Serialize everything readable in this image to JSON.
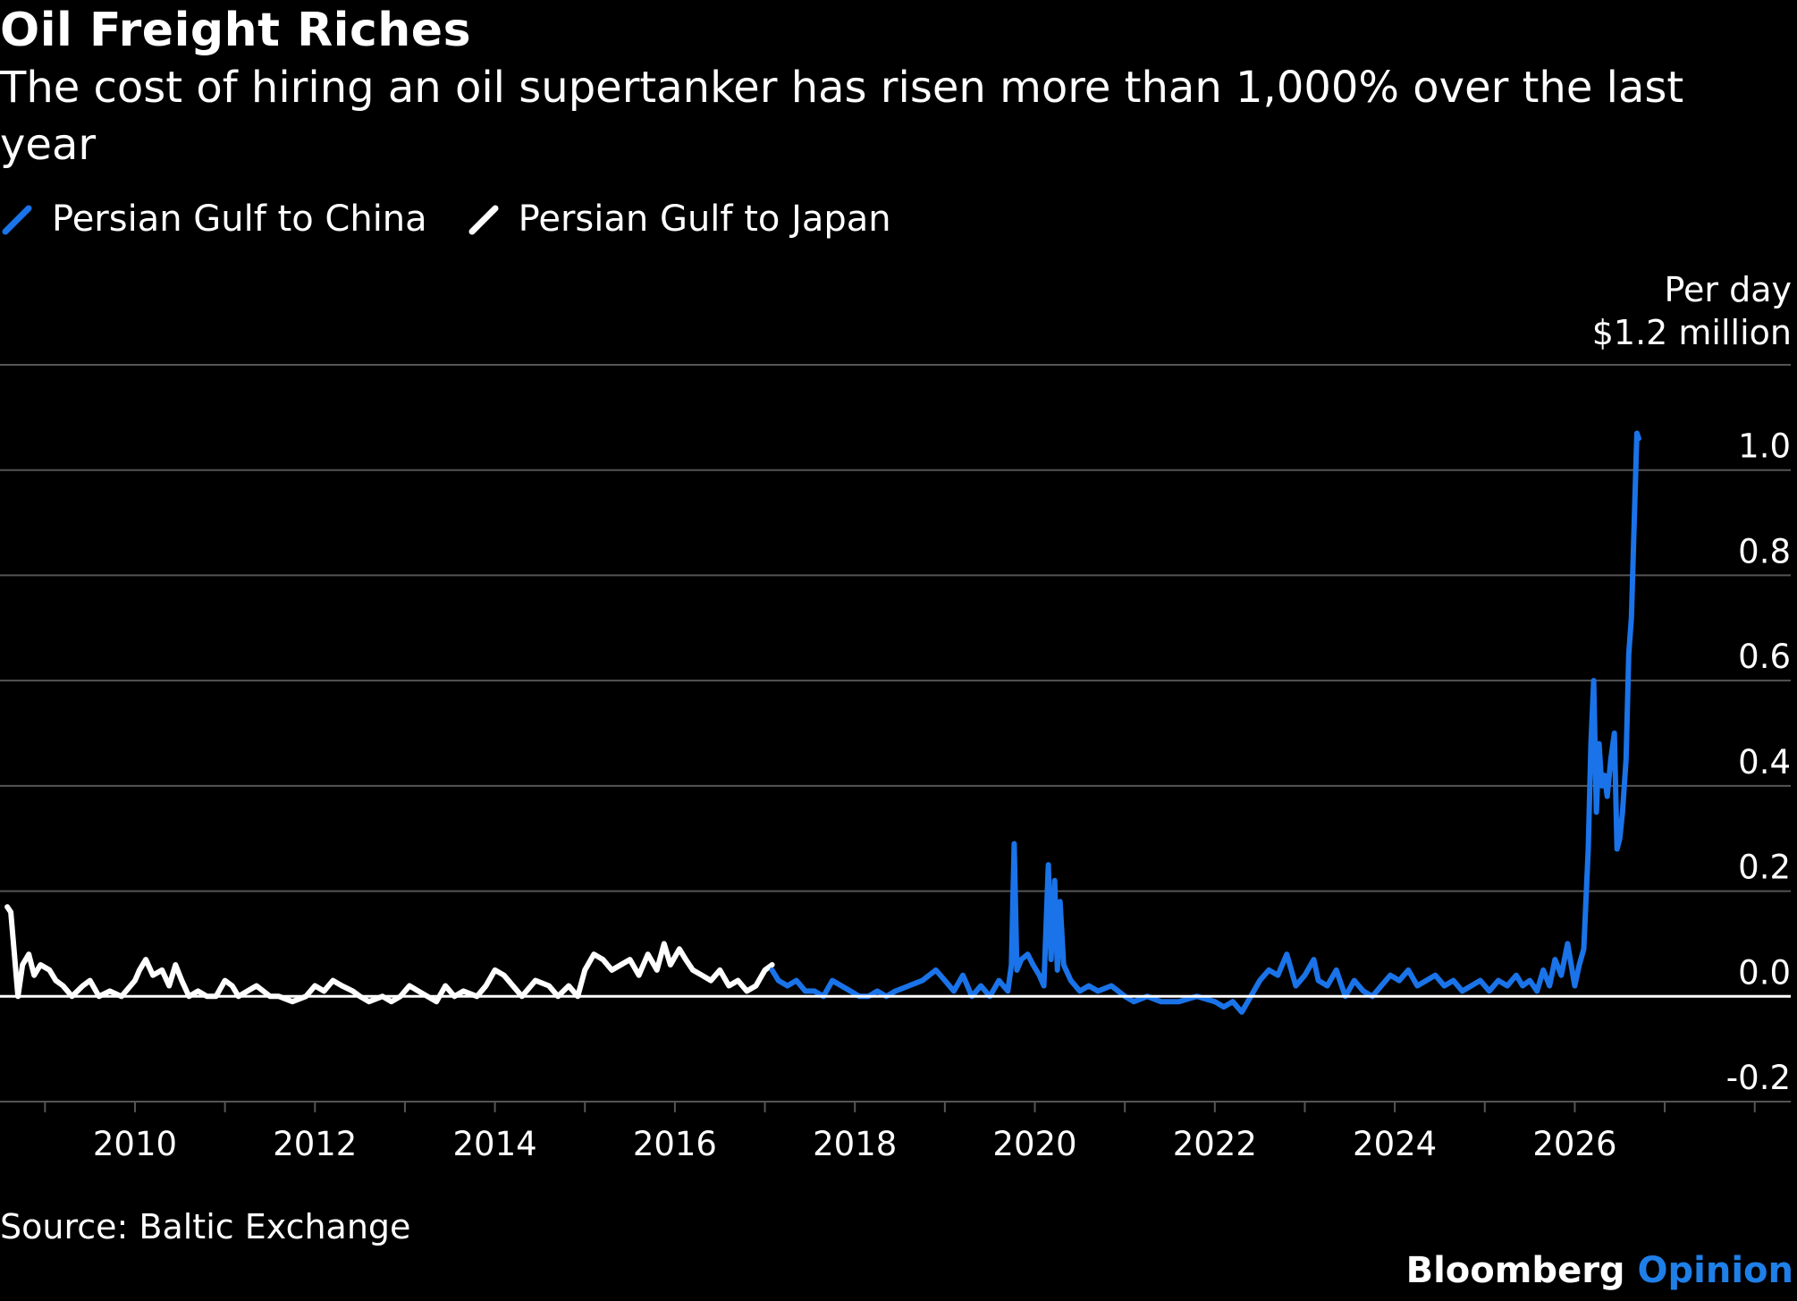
{
  "title": "Oil Freight Riches",
  "subtitle": "The cost of hiring an oil supertanker has risen more than 1,000% over the last year",
  "unit_label_line1": "Per day",
  "unit_label_line2": "$1.2 million",
  "source": "Source: Baltic Exchange",
  "brand": {
    "name": "Bloomberg",
    "accent": "Opinion"
  },
  "colors": {
    "china": "#1a73e8",
    "japan": "#ffffff",
    "grid": "#555555",
    "zero_line": "#ffffff",
    "background": "#000000"
  },
  "legend": [
    {
      "name": "Persian Gulf to China",
      "color": "#1a73e8",
      "icon": "slash-line-icon"
    },
    {
      "name": "Persian Gulf to Japan",
      "color": "#ffffff",
      "icon": "slash-line-icon"
    }
  ],
  "chart_data": {
    "type": "line",
    "xlim": [
      2008.5,
      2028.4
    ],
    "ylim": [
      -0.2,
      1.2
    ],
    "x_ticks": [
      "2010",
      "2012",
      "2014",
      "2016",
      "2018",
      "2020",
      "2022",
      "2024",
      "2026"
    ],
    "y_ticks": [
      "1.0",
      "0.8",
      "0.6",
      "0.4",
      "0.2",
      "0.0",
      "-0.2"
    ],
    "grid": true,
    "legend_position": "top-left",
    "series": [
      {
        "name": "Persian Gulf to Japan",
        "color": "#ffffff",
        "x": [
          2008.58,
          2008.62,
          2008.7,
          2008.75,
          2008.82,
          2008.88,
          2008.95,
          2009.05,
          2009.12,
          2009.2,
          2009.3,
          2009.42,
          2009.5,
          2009.6,
          2009.72,
          2009.85,
          2010.0,
          2010.05,
          2010.12,
          2010.2,
          2010.3,
          2010.38,
          2010.45,
          2010.52,
          2010.6,
          2010.7,
          2010.8,
          2010.9,
          2011.0,
          2011.08,
          2011.15,
          2011.25,
          2011.35,
          2011.5,
          2011.6,
          2011.75,
          2011.9,
          2012.0,
          2012.1,
          2012.2,
          2012.3,
          2012.42,
          2012.5,
          2012.6,
          2012.75,
          2012.85,
          2012.95,
          2013.05,
          2013.15,
          2013.25,
          2013.35,
          2013.45,
          2013.55,
          2013.65,
          2013.8,
          2013.9,
          2014.0,
          2014.1,
          2014.2,
          2014.3,
          2014.45,
          2014.6,
          2014.7,
          2014.82,
          2014.92,
          2015.0,
          2015.1,
          2015.2,
          2015.3,
          2015.4,
          2015.5,
          2015.6,
          2015.7,
          2015.8,
          2015.88,
          2015.95,
          2016.05,
          2016.12,
          2016.2,
          2016.3,
          2016.4,
          2016.5,
          2016.6,
          2016.7,
          2016.8,
          2016.9,
          2017.0,
          2017.08
        ],
        "y": [
          0.17,
          0.16,
          0.0,
          0.06,
          0.08,
          0.04,
          0.06,
          0.05,
          0.03,
          0.02,
          0.0,
          0.02,
          0.03,
          0.0,
          0.01,
          0.0,
          0.03,
          0.05,
          0.07,
          0.04,
          0.05,
          0.02,
          0.06,
          0.03,
          0.0,
          0.01,
          0.0,
          0.0,
          0.03,
          0.02,
          0.0,
          0.01,
          0.02,
          0.0,
          0.0,
          -0.01,
          0.0,
          0.02,
          0.01,
          0.03,
          0.02,
          0.01,
          0.0,
          -0.01,
          0.0,
          -0.01,
          0.0,
          0.02,
          0.01,
          0.0,
          -0.01,
          0.02,
          0.0,
          0.01,
          0.0,
          0.02,
          0.05,
          0.04,
          0.02,
          0.0,
          0.03,
          0.02,
          0.0,
          0.02,
          0.0,
          0.05,
          0.08,
          0.07,
          0.05,
          0.06,
          0.07,
          0.04,
          0.08,
          0.05,
          0.1,
          0.06,
          0.09,
          0.07,
          0.05,
          0.04,
          0.03,
          0.05,
          0.02,
          0.03,
          0.01,
          0.02,
          0.05,
          0.06
        ]
      },
      {
        "name": "Persian Gulf to China",
        "color": "#1a73e8",
        "x": [
          2017.08,
          2017.15,
          2017.25,
          2017.35,
          2017.45,
          2017.55,
          2017.65,
          2017.75,
          2017.85,
          2017.95,
          2018.05,
          2018.15,
          2018.25,
          2018.35,
          2018.45,
          2018.6,
          2018.75,
          2018.9,
          2019.0,
          2019.1,
          2019.2,
          2019.3,
          2019.4,
          2019.5,
          2019.6,
          2019.7,
          2019.74,
          2019.77,
          2019.8,
          2019.85,
          2019.92,
          2019.98,
          2020.05,
          2020.1,
          2020.15,
          2020.18,
          2020.22,
          2020.25,
          2020.28,
          2020.32,
          2020.4,
          2020.5,
          2020.6,
          2020.7,
          2020.85,
          2021.0,
          2021.1,
          2021.25,
          2021.4,
          2021.6,
          2021.8,
          2022.0,
          2022.1,
          2022.2,
          2022.3,
          2022.4,
          2022.5,
          2022.6,
          2022.7,
          2022.8,
          2022.9,
          2023.0,
          2023.1,
          2023.15,
          2023.25,
          2023.35,
          2023.45,
          2023.55,
          2023.65,
          2023.75,
          2023.85,
          2023.95,
          2024.05,
          2024.15,
          2024.25,
          2024.35,
          2024.45,
          2024.55,
          2024.65,
          2024.75,
          2024.85,
          2024.95,
          2025.05,
          2025.15,
          2025.25,
          2025.35,
          2025.42,
          2025.5,
          2025.58,
          2025.65,
          2025.72,
          2025.78,
          2025.85,
          2025.92,
          2026.0,
          2026.05,
          2026.1,
          2026.15,
          2026.18,
          2026.21,
          2026.24,
          2026.27,
          2026.3,
          2026.33,
          2026.36,
          2026.4,
          2026.44,
          2026.47,
          2026.5,
          2026.53,
          2026.57,
          2026.6,
          2026.63,
          2026.66,
          2026.69,
          2026.71
        ],
        "y": [
          0.05,
          0.03,
          0.02,
          0.03,
          0.01,
          0.01,
          0.0,
          0.03,
          0.02,
          0.01,
          0.0,
          0.0,
          0.01,
          0.0,
          0.01,
          0.02,
          0.03,
          0.05,
          0.03,
          0.01,
          0.04,
          0.0,
          0.02,
          0.0,
          0.03,
          0.01,
          0.06,
          0.29,
          0.05,
          0.07,
          0.08,
          0.06,
          0.04,
          0.02,
          0.25,
          0.07,
          0.22,
          0.05,
          0.18,
          0.06,
          0.03,
          0.01,
          0.02,
          0.01,
          0.02,
          0.0,
          -0.01,
          0.0,
          -0.01,
          -0.01,
          0.0,
          -0.01,
          -0.02,
          -0.01,
          -0.03,
          0.0,
          0.03,
          0.05,
          0.04,
          0.08,
          0.02,
          0.04,
          0.07,
          0.03,
          0.02,
          0.05,
          0.0,
          0.03,
          0.01,
          0.0,
          0.02,
          0.04,
          0.03,
          0.05,
          0.02,
          0.03,
          0.04,
          0.02,
          0.03,
          0.01,
          0.02,
          0.03,
          0.01,
          0.03,
          0.02,
          0.04,
          0.02,
          0.03,
          0.01,
          0.05,
          0.02,
          0.07,
          0.04,
          0.1,
          0.02,
          0.06,
          0.09,
          0.28,
          0.48,
          0.6,
          0.35,
          0.48,
          0.4,
          0.42,
          0.38,
          0.45,
          0.5,
          0.28,
          0.3,
          0.35,
          0.45,
          0.65,
          0.72,
          0.9,
          1.07,
          1.06
        ]
      }
    ]
  }
}
